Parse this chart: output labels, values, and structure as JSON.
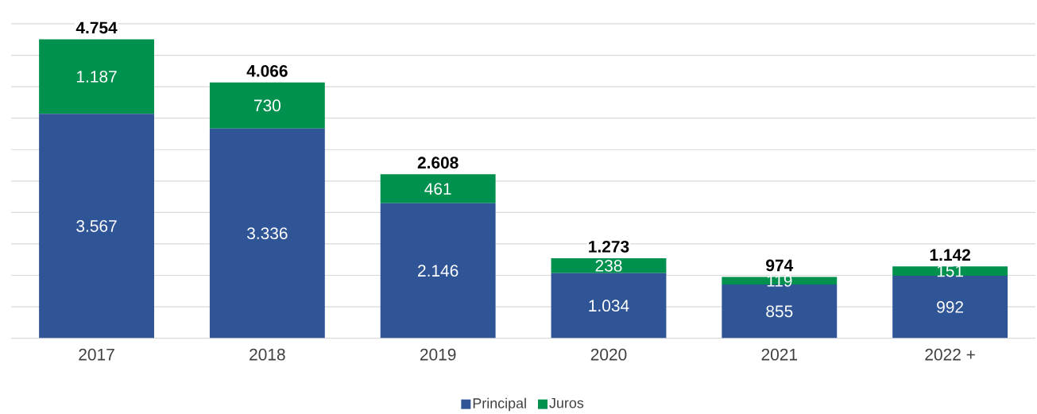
{
  "chart_data": {
    "type": "bar",
    "stacked": true,
    "categories": [
      "2017",
      "2018",
      "2019",
      "2020",
      "2021",
      "2022 +"
    ],
    "series": [
      {
        "name": "Principal",
        "color": "#2f5597",
        "values": [
          3567,
          3336,
          2146,
          1034,
          855,
          992
        ],
        "value_labels": [
          "3.567",
          "3.336",
          "2.146",
          "1.034",
          "855",
          "992"
        ]
      },
      {
        "name": "Juros",
        "color": "#00914f",
        "values": [
          1187,
          730,
          461,
          238,
          119,
          151
        ],
        "value_labels": [
          "1.187",
          "730",
          "461",
          "238",
          "119",
          "151"
        ]
      }
    ],
    "totals": [
      "4.754",
      "4.066",
      "2.608",
      "1.273",
      "974",
      "1.142"
    ],
    "ylim": [
      0,
      5000
    ],
    "yticks": [
      {
        "value": 0,
        "label": null
      },
      {
        "value": 500,
        "label": null
      },
      {
        "value": 1000,
        "label": null
      },
      {
        "value": 1500,
        "label": null
      },
      {
        "value": 2000,
        "label": null
      },
      {
        "value": 2500,
        "label": null
      },
      {
        "value": 3000,
        "label": null
      },
      {
        "value": 3500,
        "label": null
      },
      {
        "value": 4000,
        "label": null
      },
      {
        "value": 4500,
        "label": null
      },
      {
        "value": 5000,
        "label": null
      }
    ],
    "grid": "y",
    "legend": "bottom",
    "tick_labels": "x"
  }
}
